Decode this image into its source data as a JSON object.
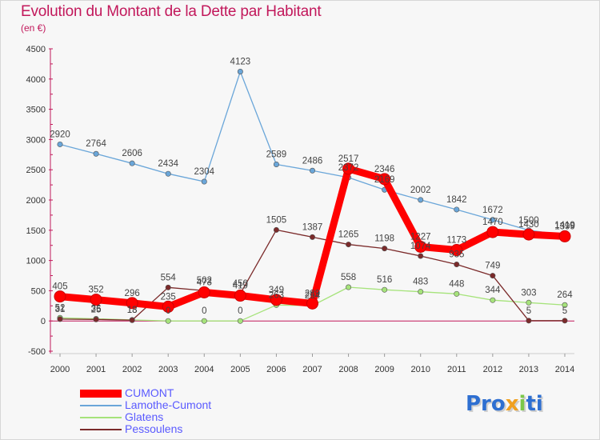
{
  "title": "Evolution du Montant de la Dette par Habitant",
  "unit": "(en €)",
  "logo_text": "Proxiti",
  "chart_data": {
    "type": "line",
    "ylim": [
      -500,
      4500
    ],
    "yticks": [
      -500,
      0,
      500,
      1000,
      1500,
      2000,
      2500,
      3000,
      3500,
      4000,
      4500
    ],
    "categories": [
      "2000",
      "2001",
      "2002",
      "2003",
      "2004",
      "2005",
      "2006",
      "2007",
      "2008",
      "2009",
      "2010",
      "2011",
      "2012",
      "2013",
      "2014"
    ],
    "grid": false,
    "legend_position": "bottom-left",
    "series": [
      {
        "name": "CUMONT",
        "color": "#ff0000",
        "values": [
          405,
          352,
          296,
          235,
          473,
          419,
          349,
          289,
          2517,
          2346,
          1227,
          1173,
          1470,
          1430,
          1399
        ]
      },
      {
        "name": "Lamothe-Cumont",
        "color": "#6aa6d9",
        "values": [
          2920,
          2764,
          2606,
          2434,
          2304,
          4123,
          2589,
          2486,
          2372,
          2169,
          2002,
          1842,
          1672,
          1500,
          1419
        ]
      },
      {
        "name": "Glatens",
        "color": "#a6e37b",
        "values": [
          52,
          36,
          18,
          0,
          0,
          0,
          263,
          254,
          558,
          516,
          483,
          448,
          344,
          303,
          264
        ]
      },
      {
        "name": "Pessoulens",
        "color": "#7b2a2a",
        "values": [
          31,
          25,
          13,
          554,
          502,
          450,
          1505,
          1387,
          1265,
          1198,
          1074,
          935,
          749,
          5,
          5
        ]
      }
    ],
    "data_labels": [
      {
        "text": "2920",
        "x": "2000",
        "y": 2920
      },
      {
        "text": "2764",
        "x": "2001",
        "y": 2764
      },
      {
        "text": "2606",
        "x": "2002",
        "y": 2606
      },
      {
        "text": "2434",
        "x": "2003",
        "y": 2434
      },
      {
        "text": "2304",
        "x": "2004",
        "y": 2304
      },
      {
        "text": "4123",
        "x": "2005",
        "y": 4123
      },
      {
        "text": "2589",
        "x": "2006",
        "y": 2589
      },
      {
        "text": "2486",
        "x": "2007",
        "y": 2486
      },
      {
        "text": "2517",
        "x": "2008",
        "y": 2517
      },
      {
        "text": "2372",
        "x": "2008",
        "y": 2372
      },
      {
        "text": "2346",
        "x": "2009",
        "y": 2346
      },
      {
        "text": "2169",
        "x": "2009",
        "y": 2169
      },
      {
        "text": "2002",
        "x": "2010",
        "y": 2002
      },
      {
        "text": "1842",
        "x": "2011",
        "y": 1842
      },
      {
        "text": "1672",
        "x": "2012",
        "y": 1672
      },
      {
        "text": "1470",
        "x": "2012",
        "y": 1470
      },
      {
        "text": "1500",
        "x": "2013",
        "y": 1500
      },
      {
        "text": "1430",
        "x": "2013",
        "y": 1430
      },
      {
        "text": "1399",
        "x": "2014",
        "y": 1399
      },
      {
        "text": "1419",
        "x": "2014",
        "y": 1419
      },
      {
        "text": "1505",
        "x": "2006",
        "y": 1505
      },
      {
        "text": "1387",
        "x": "2007",
        "y": 1387
      },
      {
        "text": "1265",
        "x": "2008",
        "y": 1265
      },
      {
        "text": "1198",
        "x": "2009",
        "y": 1198
      },
      {
        "text": "1227",
        "x": "2010",
        "y": 1227
      },
      {
        "text": "1074",
        "x": "2010",
        "y": 1074
      },
      {
        "text": "1173",
        "x": "2011",
        "y": 1173
      },
      {
        "text": "935",
        "x": "2011",
        "y": 935
      },
      {
        "text": "749",
        "x": "2012",
        "y": 749
      },
      {
        "text": "405",
        "x": "2000",
        "y": 405
      },
      {
        "text": "352",
        "x": "2001",
        "y": 352
      },
      {
        "text": "296",
        "x": "2002",
        "y": 296
      },
      {
        "text": "554",
        "x": "2003",
        "y": 554
      },
      {
        "text": "235",
        "x": "2003",
        "y": 235
      },
      {
        "text": "502",
        "x": "2004",
        "y": 502
      },
      {
        "text": "473",
        "x": "2004",
        "y": 473
      },
      {
        "text": "450",
        "x": "2005",
        "y": 450
      },
      {
        "text": "419",
        "x": "2005",
        "y": 419
      },
      {
        "text": "349",
        "x": "2006",
        "y": 349
      },
      {
        "text": "263",
        "x": "2006",
        "y": 263
      },
      {
        "text": "289",
        "x": "2007",
        "y": 289
      },
      {
        "text": "254",
        "x": "2007",
        "y": 254
      },
      {
        "text": "558",
        "x": "2008",
        "y": 558
      },
      {
        "text": "516",
        "x": "2009",
        "y": 516
      },
      {
        "text": "483",
        "x": "2010",
        "y": 483
      },
      {
        "text": "448",
        "x": "2011",
        "y": 448
      },
      {
        "text": "344",
        "x": "2012",
        "y": 344
      },
      {
        "text": "303",
        "x": "2013",
        "y": 303
      },
      {
        "text": "264",
        "x": "2014",
        "y": 264
      },
      {
        "text": "52",
        "x": "2000",
        "y": 52
      },
      {
        "text": "31",
        "x": "2000",
        "y": 31
      },
      {
        "text": "36",
        "x": "2001",
        "y": 36
      },
      {
        "text": "25",
        "x": "2001",
        "y": 25
      },
      {
        "text": "18",
        "x": "2002",
        "y": 18
      },
      {
        "text": "13",
        "x": "2002",
        "y": 13
      },
      {
        "text": "0",
        "x": "2003",
        "y": 0
      },
      {
        "text": "0",
        "x": "2004",
        "y": 0
      },
      {
        "text": "0",
        "x": "2005",
        "y": 0
      },
      {
        "text": "5",
        "x": "2013",
        "y": 5
      },
      {
        "text": "5",
        "x": "2014",
        "y": 5
      }
    ]
  }
}
